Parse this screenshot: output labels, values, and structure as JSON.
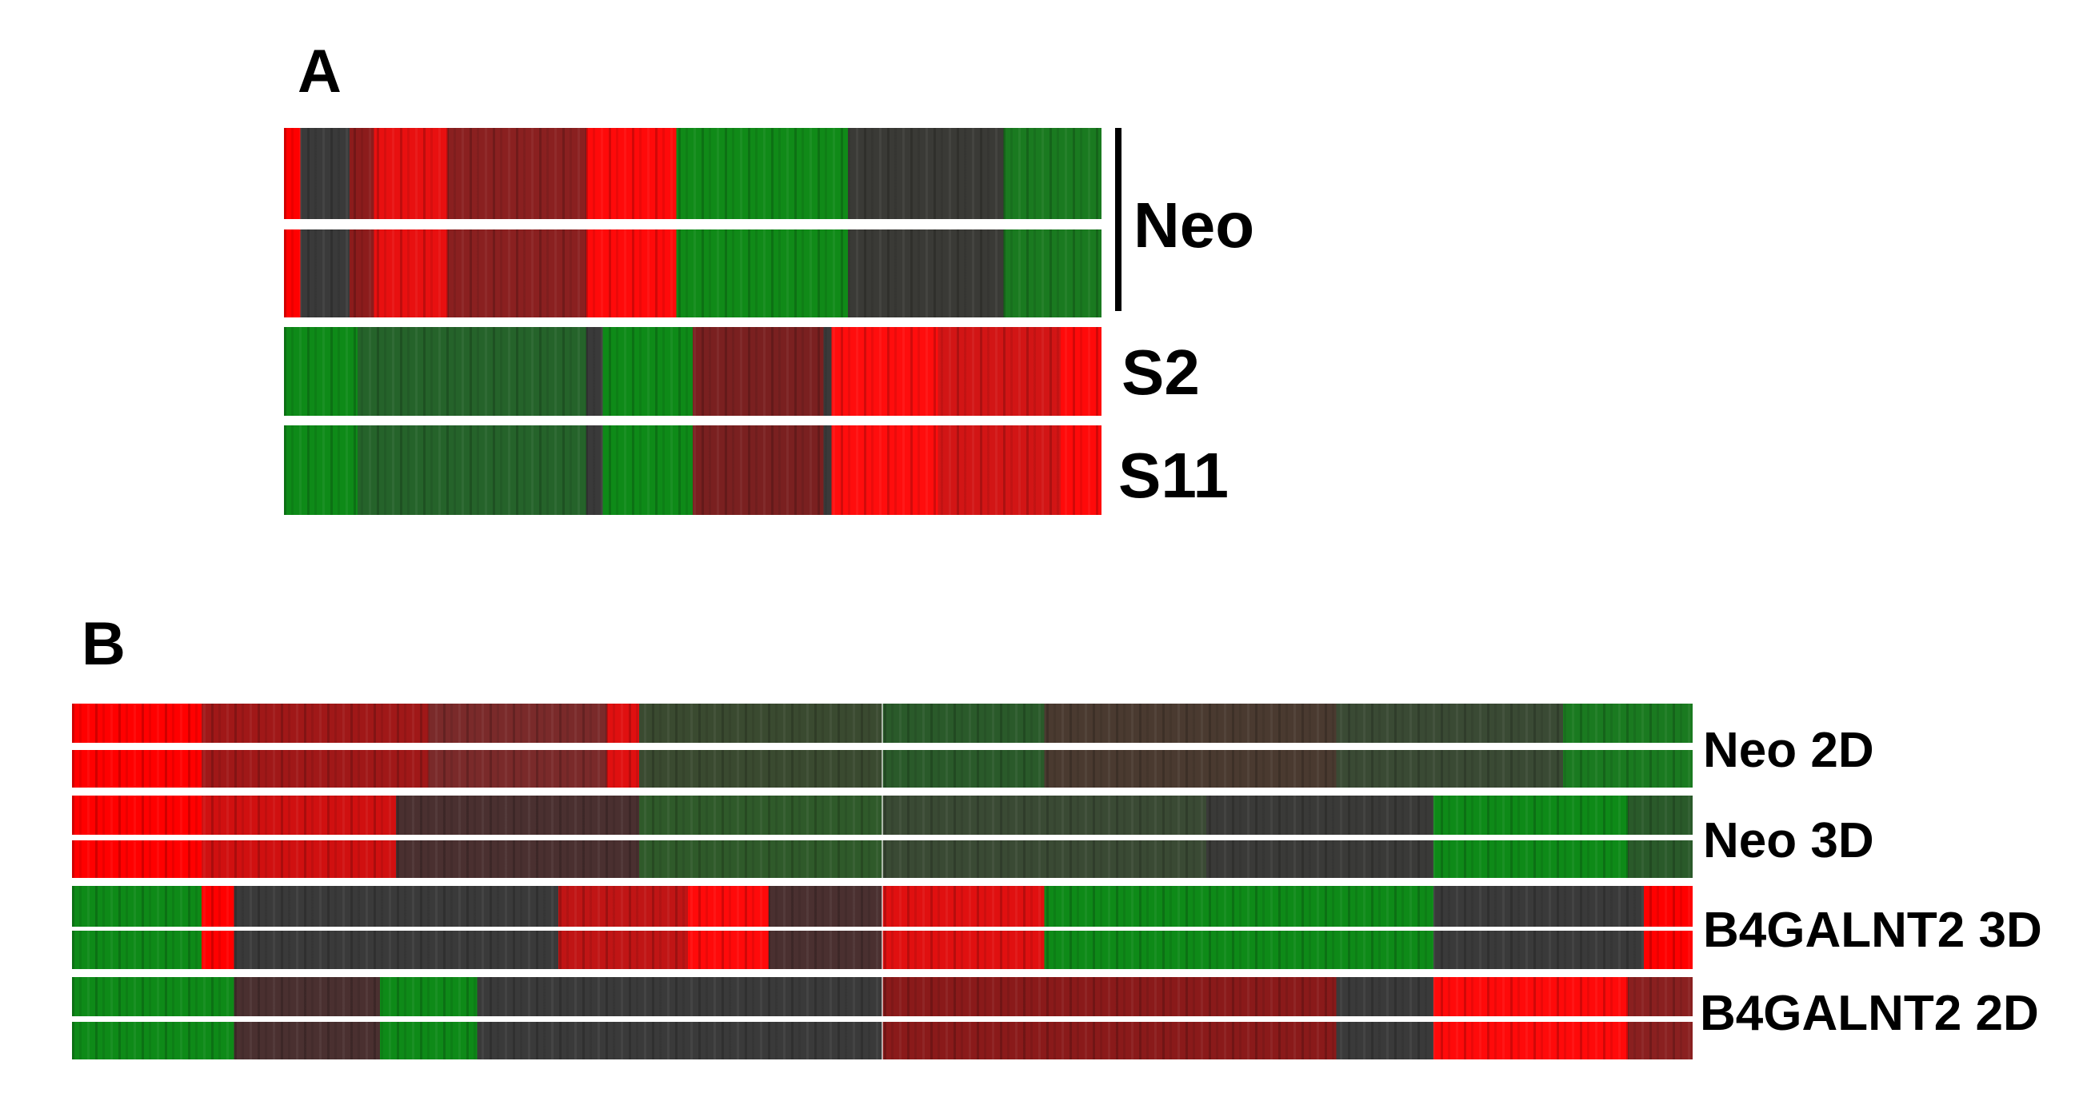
{
  "panel_a": {
    "label": "A",
    "groups": [
      "Neo",
      "S2",
      "S11"
    ]
  },
  "panel_b": {
    "label": "B",
    "groups": [
      "Neo 2D",
      "Neo 3D",
      "B4GALNT2 3D",
      "B4GALNT2 2D"
    ]
  }
}
